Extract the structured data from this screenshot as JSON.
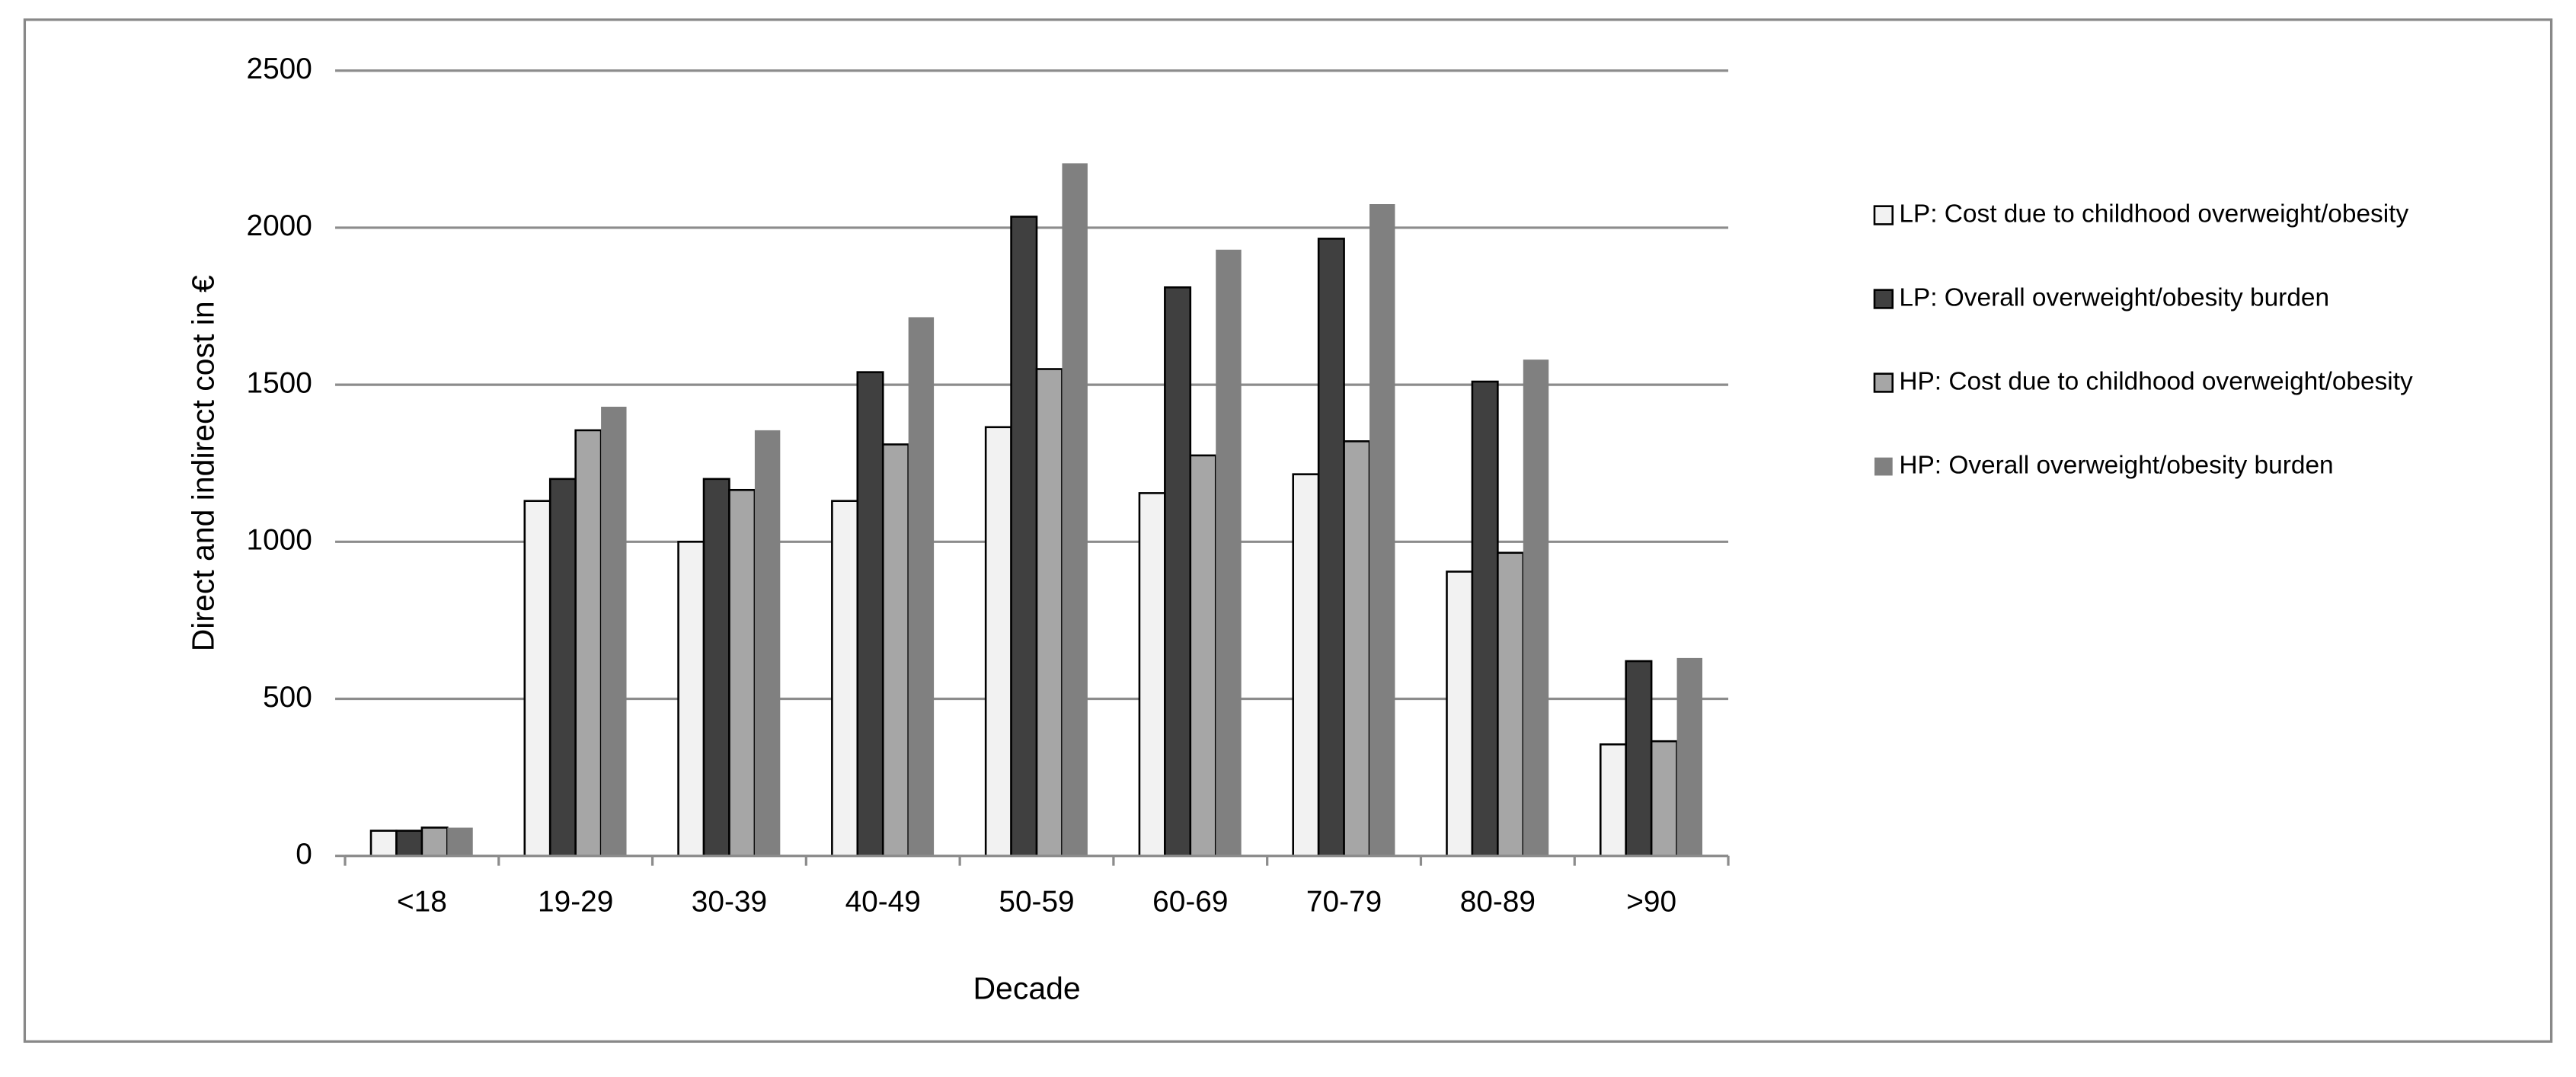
{
  "chart_data": {
    "type": "bar",
    "x_label": "Decade",
    "y_label": "Direct and indirect cost in €",
    "categories": [
      "<18",
      "19-29",
      "30-39",
      "40-49",
      "50-59",
      "60-69",
      "70-79",
      "80-89",
      ">90"
    ],
    "series": [
      {
        "name": "LP: Cost due to childhood overweight/obesity",
        "color": "#f2f2f2",
        "edgecolor": "#000000",
        "values": [
          80,
          1130,
          1000,
          1130,
          1365,
          1155,
          1215,
          905,
          355
        ]
      },
      {
        "name": "LP: Overall overweight/obesity burden",
        "color": "#404040",
        "edgecolor": "#000000",
        "values": [
          80,
          1200,
          1200,
          1540,
          2035,
          1810,
          1965,
          1510,
          620
        ]
      },
      {
        "name": "HP: Cost due to childhood overweight/obesity",
        "color": "#a6a6a6",
        "edgecolor": "#000000",
        "values": [
          90,
          1355,
          1165,
          1310,
          1550,
          1275,
          1320,
          965,
          365
        ]
      },
      {
        "name": "HP: Overall overweight/obesity burden",
        "color": "#808080",
        "values": [
          90,
          1430,
          1355,
          1715,
          2205,
          1930,
          2075,
          1580,
          630
        ]
      }
    ],
    "ylim": [
      0,
      2500
    ],
    "yticks": [
      0,
      500,
      1000,
      1500,
      2000,
      2500
    ],
    "grid": true,
    "legend": "right"
  }
}
